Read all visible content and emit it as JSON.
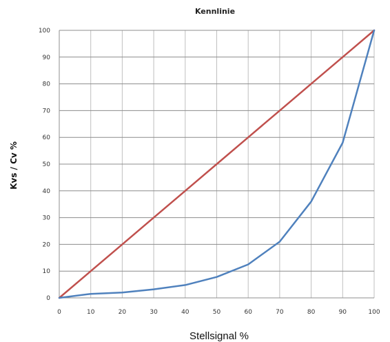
{
  "chart_data": {
    "type": "line",
    "title": "Kennlinie",
    "xlabel": "Stellsignal %",
    "ylabel": "Kvs / Cv %",
    "xlim": [
      0,
      100
    ],
    "ylim": [
      0,
      100
    ],
    "x_ticks": [
      0,
      10,
      20,
      30,
      40,
      50,
      60,
      70,
      80,
      90,
      100
    ],
    "y_ticks": [
      0,
      10,
      20,
      30,
      40,
      50,
      60,
      70,
      80,
      90,
      100
    ],
    "grid": true,
    "series": [
      {
        "color": "#c0504d",
        "x": [
          0,
          10,
          20,
          30,
          40,
          50,
          60,
          70,
          80,
          90,
          100
        ],
        "y": [
          0,
          10,
          20,
          30,
          40,
          50,
          60,
          70,
          80,
          90,
          100
        ]
      },
      {
        "color": "#4f81bd",
        "x": [
          0,
          10,
          20,
          30,
          40,
          50,
          60,
          70,
          80,
          90,
          100
        ],
        "y": [
          0,
          1.5,
          2,
          3.2,
          4.8,
          7.8,
          12.5,
          21,
          36,
          58,
          100
        ]
      }
    ]
  }
}
